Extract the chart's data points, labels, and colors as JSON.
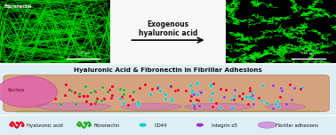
{
  "title_top": "Exogenous\nhyaluronic acid",
  "title_middle": "Hyaluronic Acid & Fibronectin in Fibrillar Adhesions",
  "label_fibronectin": "Fibronectin",
  "label_500um": "500 μm",
  "legend_items": [
    {
      "label": "Hyaluronic acid",
      "color": "#e8001c",
      "shape": "squiggle"
    },
    {
      "label": "Fibronectin",
      "color": "#22aa22",
      "shape": "squiggle"
    },
    {
      "label": "CD44",
      "color": "#00cccc",
      "shape": "circle"
    },
    {
      "label": "Integrin α5",
      "color": "#9933cc",
      "shape": "circle"
    },
    {
      "label": "Fibrillar adhesions",
      "color": "#cc66cc",
      "shape": "oval"
    }
  ],
  "bg_color": "#f0f0f0",
  "top_bg": "#ffffff",
  "image_bg": "#000000",
  "cell_body_color": "#d4956a",
  "nucleus_color": "#e060a0",
  "fibrillar_color": "#cc66cc",
  "fibrillar_alpha": 0.5,
  "arrow_color": "#000000",
  "middle_bg": "#e8f4f8",
  "bottom_bg": "#e0e8f0"
}
